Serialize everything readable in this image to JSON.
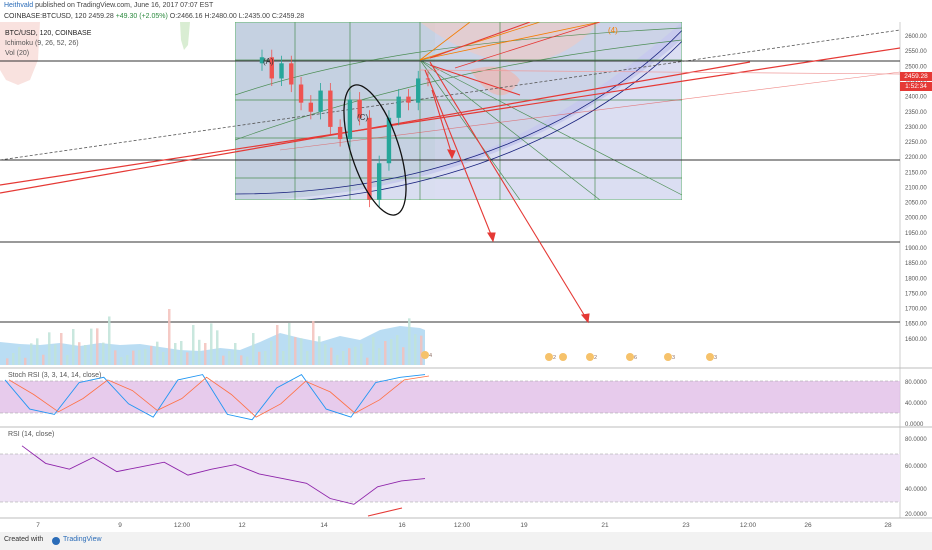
{
  "header": {
    "user": "Heithvald",
    "published": "published on TradingView.com, June 16, 2017 07:07 EST",
    "symbol": "COINBASE:BTCUSD, 120",
    "last": "2459.28",
    "change": "+49.30 (+2.05%)",
    "open": "O:2466.16",
    "high": "H:2480.00",
    "low": "L:2435.00",
    "close": "C:2459.28"
  },
  "legend": {
    "title": "BTC/USD, 120, COINBASE",
    "ichimoku": "Ichimoku (9, 26, 52, 26)",
    "volume": "Vol (20)"
  },
  "price_tags": {
    "last": "2459.28",
    "countdown": "1:52:34"
  },
  "pane_labels": {
    "stoch": "Stoch RSI (3, 3, 14, 14, close)",
    "rsi": "RSI (14, close)"
  },
  "footer": {
    "created": "Created with",
    "brand": "TradingView"
  },
  "colors": {
    "up": "#26a69a",
    "down": "#ef5350",
    "trend": "#e53935",
    "stoch_fill": "#e1bee7",
    "rsi_line": "#8e24aa"
  },
  "chart_data": [
    {
      "type": "candlestick",
      "title": "BTC/USD, 120, COINBASE",
      "ylim": [
        1550,
        2620
      ],
      "yticks": [
        1600,
        1650,
        1700,
        1750,
        1800,
        1850,
        1900,
        1950,
        2000,
        2050,
        2100,
        2150,
        2200,
        2250,
        2300,
        2350,
        2400,
        2450,
        2500,
        2550,
        2600
      ],
      "ytick_labels": [
        "1600.00",
        "1650.00",
        "1700.00",
        "1750.00",
        "1800.00",
        "1850.00",
        "1900.00",
        "1950.00",
        "2000.00",
        "2050.00",
        "2100.00",
        "2150.00",
        "2200.00",
        "2250.00",
        "2300.00",
        "2350.00",
        "2400.00",
        "2450.00",
        "2500.00",
        "2550.00",
        "2600.00"
      ],
      "xtick_labels": [
        "7",
        "9",
        "12:00",
        "12",
        "14",
        "16",
        "12:00",
        "19",
        "21",
        "23",
        "12:00",
        "26",
        "28"
      ],
      "horizontal_levels": [
        2500,
        2190,
        1945,
        1700
      ],
      "annotations": [
        "(A)",
        "(C)",
        "(4)"
      ],
      "series": [
        {
          "name": "BTC/USD",
          "close": [
            2530,
            2460,
            2510,
            2440,
            2380,
            2350,
            2420,
            2300,
            2260,
            2390,
            2330,
            2060,
            2180,
            2330,
            2400,
            2380,
            2460,
            2459.28
          ]
        },
        {
          "name": "Vol (20)",
          "values": [
            20,
            15,
            30,
            18,
            25,
            40,
            22,
            35,
            28,
            60,
            30,
            45,
            38,
            50,
            42,
            55,
            48,
            52
          ]
        }
      ]
    },
    {
      "type": "line",
      "title": "Stoch RSI (3, 3, 14, 14, close)",
      "ylim": [
        0,
        100
      ],
      "ytick_labels": [
        "80.0000",
        "40.0000",
        "0.0000"
      ],
      "series": [
        {
          "name": "Stoch RSI",
          "values": [
            85,
            30,
            20,
            80,
            90,
            40,
            15,
            85,
            95,
            20,
            10,
            70,
            95,
            30,
            15,
            80,
            90,
            95
          ]
        }
      ]
    },
    {
      "type": "line",
      "title": "RSI (14, close)",
      "ylim": [
        20,
        85
      ],
      "ytick_labels": [
        "80.0000",
        "60.0000",
        "40.0000",
        "20.0000"
      ],
      "series": [
        {
          "name": "RSI",
          "values": [
            80,
            65,
            60,
            70,
            58,
            62,
            66,
            55,
            60,
            64,
            56,
            52,
            48,
            35,
            30,
            45,
            50,
            52
          ]
        }
      ]
    }
  ]
}
